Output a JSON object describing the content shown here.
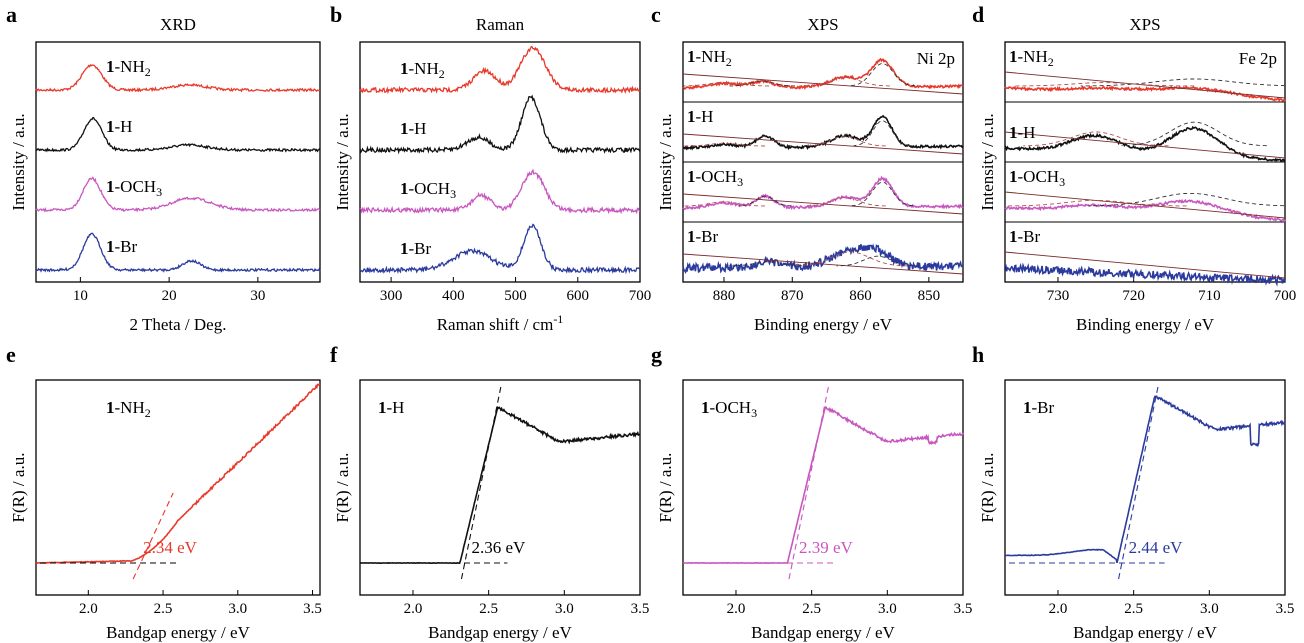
{
  "figure": "materials characterization panels",
  "chart_data": [
    {
      "panel": "a",
      "type": "line",
      "title": "XRD",
      "xlabel": "2 Theta / Deg.",
      "ylabel": "Intensity / a.u.",
      "xlim": [
        5,
        37
      ],
      "xticks": [
        10,
        20,
        30
      ],
      "series": [
        {
          "name": "1-NH2",
          "bold": "1",
          "rest": "-NH",
          "sub": "2",
          "color": "#e8382b",
          "peaks": [
            {
              "x": 11.3,
              "h": 0.6,
              "w": 1.1
            },
            {
              "x": 22.2,
              "h": 0.12,
              "w": 2.0
            }
          ]
        },
        {
          "name": "1-H",
          "bold": "1",
          "rest": "-H",
          "sub": "",
          "color": "#111111",
          "peaks": [
            {
              "x": 11.4,
              "h": 0.75,
              "w": 1.0
            },
            {
              "x": 22.3,
              "h": 0.12,
              "w": 2.0
            }
          ]
        },
        {
          "name": "1-OCH3",
          "bold": "1",
          "rest": "-OCH",
          "sub": "3",
          "color": "#c857c0",
          "peaks": [
            {
              "x": 11.3,
              "h": 0.75,
              "w": 1.0
            },
            {
              "x": 22.5,
              "h": 0.28,
              "w": 2.2
            }
          ]
        },
        {
          "name": "1-Br",
          "bold": "1",
          "rest": "-Br",
          "sub": "",
          "color": "#2b3a9e",
          "peaks": [
            {
              "x": 11.3,
              "h": 0.85,
              "w": 1.0
            },
            {
              "x": 22.5,
              "h": 0.22,
              "w": 1.0
            }
          ]
        }
      ]
    },
    {
      "panel": "b",
      "type": "line",
      "title": "Raman",
      "xlabel": "Raman shift / cm",
      "xlabel_sup": "-1",
      "ylabel": "Intensity / a.u.",
      "xlim": [
        250,
        700
      ],
      "xticks": [
        300,
        400,
        500,
        600,
        700
      ],
      "series": [
        {
          "name": "1-NH2",
          "bold": "1",
          "rest": "-NH",
          "sub": "2",
          "color": "#e8382b",
          "peaks": [
            {
              "x": 450,
              "h": 0.45,
              "w": 18
            },
            {
              "x": 528,
              "h": 1.0,
              "w": 20
            }
          ]
        },
        {
          "name": "1-H",
          "bold": "1",
          "rest": "-H",
          "sub": "",
          "color": "#111111",
          "peaks": [
            {
              "x": 440,
              "h": 0.3,
              "w": 18
            },
            {
              "x": 525,
              "h": 1.25,
              "w": 15
            }
          ]
        },
        {
          "name": "1-OCH3",
          "bold": "1",
          "rest": "-OCH",
          "sub": "3",
          "color": "#c857c0",
          "peaks": [
            {
              "x": 445,
              "h": 0.35,
              "w": 15
            },
            {
              "x": 528,
              "h": 0.9,
              "w": 18
            }
          ]
        },
        {
          "name": "1-Br",
          "bold": "1",
          "rest": "-Br",
          "sub": "",
          "color": "#2b3a9e",
          "peaks": [
            {
              "x": 430,
              "h": 0.45,
              "w": 30
            },
            {
              "x": 527,
              "h": 1.05,
              "w": 14
            }
          ]
        }
      ]
    },
    {
      "panel": "c",
      "type": "line",
      "title": "XPS",
      "annotation": "Ni 2p",
      "xlabel": "Binding energy / eV",
      "ylabel": "Intensity / a.u.",
      "xlim": [
        886,
        845
      ],
      "xticks": [
        880,
        870,
        860,
        850
      ],
      "series": [
        {
          "name": "1-NH2",
          "bold": "1",
          "rest": "-NH",
          "sub": "2",
          "color": "#e8382b",
          "peaks": [
            {
              "x": 856.8,
              "h": 0.8,
              "w": 1.6
            },
            {
              "x": 862.3,
              "h": 0.3,
              "w": 2.2
            },
            {
              "x": 874.4,
              "h": 0.18,
              "w": 1.6
            },
            {
              "x": 880,
              "h": 0.13,
              "w": 2.2
            }
          ]
        },
        {
          "name": "1-H",
          "bold": "1",
          "rest": "-H",
          "sub": "",
          "color": "#111111",
          "peaks": [
            {
              "x": 856.8,
              "h": 0.9,
              "w": 1.4
            },
            {
              "x": 862.3,
              "h": 0.35,
              "w": 2.0
            },
            {
              "x": 874.0,
              "h": 0.35,
              "w": 1.3
            },
            {
              "x": 880,
              "h": 0.1,
              "w": 2.0
            }
          ]
        },
        {
          "name": "1-OCH3",
          "bold": "1",
          "rest": "-OCH",
          "sub": "3",
          "color": "#c857c0",
          "peaks": [
            {
              "x": 856.8,
              "h": 0.85,
              "w": 1.5
            },
            {
              "x": 862.3,
              "h": 0.3,
              "w": 2.0
            },
            {
              "x": 874.0,
              "h": 0.35,
              "w": 1.3
            },
            {
              "x": 880,
              "h": 0.15,
              "w": 2.0
            }
          ]
        },
        {
          "name": "1-Br",
          "bold": "1",
          "rest": "-Br",
          "sub": "",
          "color": "#2b3a9e",
          "peaks": [
            {
              "x": 857.5,
              "h": 0.35,
              "w": 2.0
            },
            {
              "x": 861.5,
              "h": 0.5,
              "w": 2.8
            },
            {
              "x": 873.5,
              "h": 0.15,
              "w": 2.0
            }
          ]
        }
      ]
    },
    {
      "panel": "d",
      "type": "line",
      "title": "XPS",
      "annotation": "Fe 2p",
      "xlabel": "Binding energy / eV",
      "ylabel": "Intensity / a.u.",
      "xlim": [
        737,
        700
      ],
      "xticks": [
        730,
        720,
        710,
        700
      ],
      "series": [
        {
          "name": "1-NH2",
          "bold": "1",
          "rest": "-NH",
          "sub": "2",
          "color": "#e8382b",
          "peaks": [
            {
              "x": 712,
              "h": 0.25,
              "w": 5.0
            },
            {
              "x": 724,
              "h": 0.12,
              "w": 4.0
            }
          ]
        },
        {
          "name": "1-H",
          "bold": "1",
          "rest": "-H",
          "sub": "",
          "color": "#111111",
          "peaks": [
            {
              "x": 712,
              "h": 0.85,
              "w": 3.2
            },
            {
              "x": 725,
              "h": 0.5,
              "w": 3.2
            }
          ]
        },
        {
          "name": "1-OCH3",
          "bold": "1",
          "rest": "-OCH",
          "sub": "3",
          "color": "#c857c0",
          "peaks": [
            {
              "x": 712.5,
              "h": 0.45,
              "w": 4.5
            },
            {
              "x": 725,
              "h": 0.2,
              "w": 4.0
            }
          ]
        },
        {
          "name": "1-Br",
          "bold": "1",
          "rest": "-Br",
          "sub": "",
          "color": "#2b3a9e",
          "peaks": []
        }
      ]
    },
    {
      "panel": "e",
      "type": "line",
      "name": "1-NH2",
      "bold": "1",
      "rest": "-NH",
      "sub": "2",
      "color": "#e8382b",
      "bandgap": 2.34,
      "bandgap_label": "2.34 eV",
      "xlabel": "Bandgap energy / eV",
      "ylabel": "F(R) / a.u.",
      "xlim": [
        1.65,
        3.55
      ],
      "xticks": [
        2.0,
        2.5,
        3.0,
        3.5
      ]
    },
    {
      "panel": "f",
      "type": "line",
      "name": "1-H",
      "bold": "1",
      "rest": "-H",
      "sub": "",
      "color": "#111111",
      "bandgap": 2.36,
      "bandgap_label": "2.36 eV",
      "xlabel": "Bandgap energy / eV",
      "ylabel": "F(R) / a.u.",
      "xlim": [
        1.65,
        3.5
      ],
      "xticks": [
        2.0,
        2.5,
        3.0,
        3.5
      ]
    },
    {
      "panel": "g",
      "type": "line",
      "name": "1-OCH3",
      "bold": "1",
      "rest": "-OCH",
      "sub": "3",
      "color": "#c857c0",
      "bandgap": 2.39,
      "bandgap_label": "2.39 eV",
      "xlabel": "Bandgap energy / eV",
      "ylabel": "F(R) / a.u.",
      "xlim": [
        1.65,
        3.5
      ],
      "xticks": [
        2.0,
        2.5,
        3.0,
        3.5
      ]
    },
    {
      "panel": "h",
      "type": "line",
      "name": "1-Br",
      "bold": "1",
      "rest": "-Br",
      "sub": "",
      "color": "#2b3a9e",
      "bandgap": 2.44,
      "bandgap_label": "2.44 eV",
      "xlabel": "Bandgap energy / eV",
      "ylabel": "F(R) / a.u.",
      "xlim": [
        1.65,
        3.5
      ],
      "xticks": [
        2.0,
        2.5,
        3.0,
        3.5
      ]
    }
  ]
}
